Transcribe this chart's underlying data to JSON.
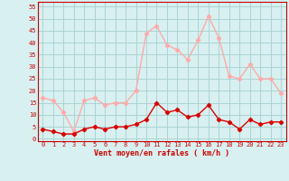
{
  "hours": [
    0,
    1,
    2,
    3,
    4,
    5,
    6,
    7,
    8,
    9,
    10,
    11,
    12,
    13,
    14,
    15,
    16,
    17,
    18,
    19,
    20,
    21,
    22,
    23
  ],
  "avg_wind": [
    4,
    3,
    2,
    2,
    4,
    5,
    4,
    5,
    5,
    6,
    8,
    15,
    11,
    12,
    9,
    10,
    14,
    8,
    7,
    4,
    8,
    6,
    7,
    7
  ],
  "gust_wind": [
    17,
    16,
    11,
    3,
    16,
    17,
    14,
    15,
    15,
    20,
    44,
    47,
    39,
    37,
    33,
    41,
    51,
    42,
    26,
    25,
    31,
    25,
    25,
    19
  ],
  "avg_color": "#dd0000",
  "gust_color": "#ffaaaa",
  "bg_color": "#d8f0f0",
  "grid_color": "#aad4d4",
  "axis_color": "#cc0000",
  "xlabel": "Vent moyen/en rafales ( km/h )",
  "yticks": [
    0,
    5,
    10,
    15,
    20,
    25,
    30,
    35,
    40,
    45,
    50,
    55
  ],
  "ylim": [
    -1,
    57
  ],
  "xlim": [
    -0.5,
    23.5
  ],
  "marker": "D",
  "markersize": 2.2,
  "linewidth": 1.0
}
